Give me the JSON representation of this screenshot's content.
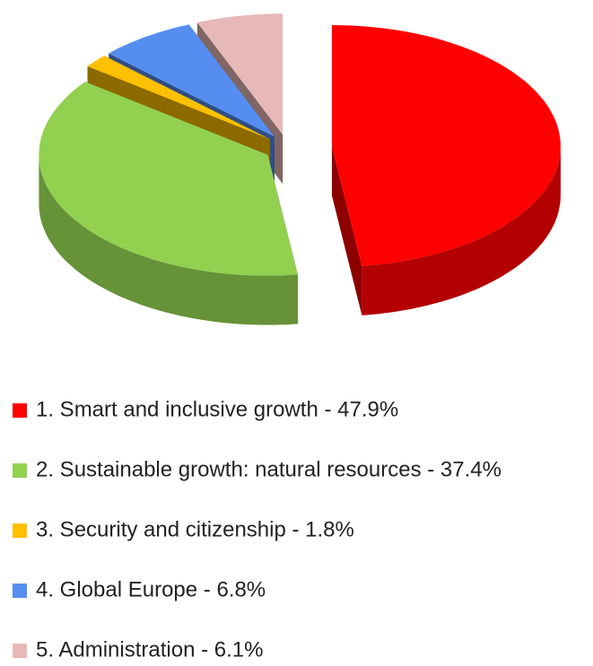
{
  "chart_data": {
    "type": "pie3d",
    "categories": [
      "1.  Smart and inclusive growth - 47.9%",
      "2.  Sustainable growth: natural resources - 37.4%",
      "3.  Security and citizenship - 1.8%",
      "4.  Global Europe - 6.8%",
      "5.  Administration - 6.1%"
    ],
    "values": [
      47.9,
      37.4,
      1.8,
      6.8,
      6.1
    ],
    "colors": [
      "#ff0000",
      "#92d050",
      "#ffc000",
      "#558ef0",
      "#e6b9b8"
    ]
  }
}
